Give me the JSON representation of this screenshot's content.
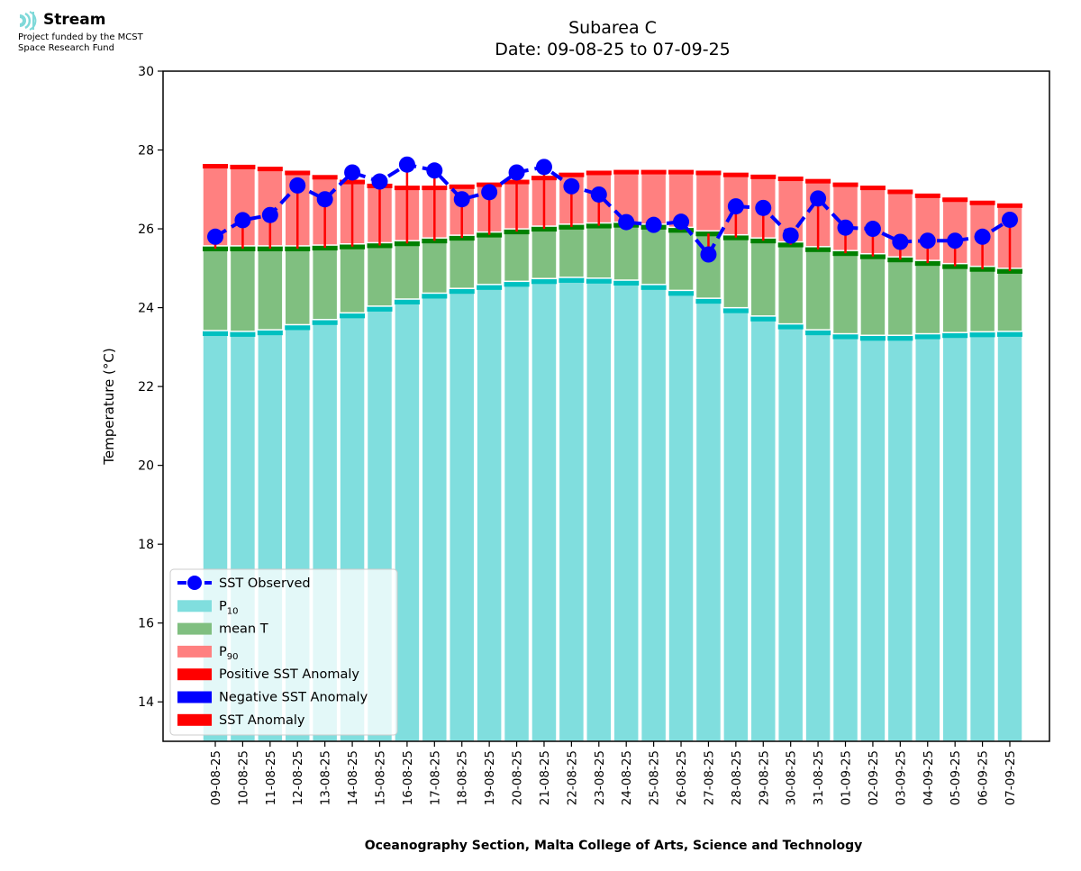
{
  "logo": {
    "name": "Stream",
    "subtitle_line1": "Project funded by the MCST",
    "subtitle_line2": "Space Research Fund"
  },
  "chart_data": {
    "type": "bar",
    "title": "Subarea C",
    "subtitle": "Date: 09-08-25 to 07-09-25",
    "xlabel": "Oceanography Section, Malta College of Arts, Science and Technology",
    "ylabel": "Temperature (°C)",
    "ylim": [
      13,
      30
    ],
    "yticks": [
      14,
      16,
      18,
      20,
      22,
      24,
      26,
      28,
      30
    ],
    "legend_position": "bottom-left",
    "categories": [
      "09-08-25",
      "10-08-25",
      "11-08-25",
      "12-08-25",
      "13-08-25",
      "14-08-25",
      "15-08-25",
      "16-08-25",
      "17-08-25",
      "18-08-25",
      "19-08-25",
      "20-08-25",
      "21-08-25",
      "22-08-25",
      "23-08-25",
      "24-08-25",
      "25-08-25",
      "26-08-25",
      "27-08-25",
      "28-08-25",
      "29-08-25",
      "30-08-25",
      "31-08-25",
      "01-09-25",
      "02-09-25",
      "03-09-25",
      "04-09-25",
      "05-09-25",
      "06-09-25",
      "07-09-25"
    ],
    "series": [
      {
        "name": "P10",
        "values": [
          23.35,
          23.33,
          23.37,
          23.5,
          23.63,
          23.8,
          23.97,
          24.15,
          24.3,
          24.42,
          24.52,
          24.6,
          24.67,
          24.7,
          24.68,
          24.63,
          24.52,
          24.37,
          24.17,
          23.93,
          23.72,
          23.52,
          23.37,
          23.27,
          23.23,
          23.23,
          23.27,
          23.3,
          23.32,
          23.33
        ]
      },
      {
        "name": "mean T",
        "values": [
          25.5,
          25.5,
          25.5,
          25.5,
          25.52,
          25.55,
          25.58,
          25.63,
          25.7,
          25.77,
          25.85,
          25.93,
          26.0,
          26.05,
          26.08,
          26.1,
          26.05,
          25.97,
          25.88,
          25.78,
          25.7,
          25.6,
          25.48,
          25.38,
          25.3,
          25.22,
          25.13,
          25.05,
          24.98,
          24.93
        ]
      },
      {
        "name": "P90",
        "values": [
          27.6,
          27.58,
          27.53,
          27.43,
          27.32,
          27.2,
          27.1,
          27.05,
          27.05,
          27.08,
          27.13,
          27.2,
          27.3,
          27.38,
          27.43,
          27.45,
          27.45,
          27.45,
          27.43,
          27.38,
          27.33,
          27.28,
          27.22,
          27.13,
          27.05,
          26.95,
          26.85,
          26.75,
          26.67,
          26.6
        ]
      },
      {
        "name": "SST Observed",
        "values": [
          25.8,
          26.22,
          26.35,
          27.1,
          26.75,
          27.43,
          27.2,
          27.63,
          27.48,
          26.75,
          26.93,
          27.43,
          27.57,
          27.08,
          26.87,
          26.17,
          26.1,
          26.18,
          25.35,
          26.57,
          26.53,
          25.83,
          26.77,
          26.03,
          26.0,
          25.67,
          25.7,
          25.7,
          25.8,
          26.23
        ]
      }
    ],
    "legend": [
      {
        "label": "SST Observed",
        "color": "#0000ff"
      },
      {
        "label": "P",
        "sub": "10",
        "color": "#80dede"
      },
      {
        "label": "mean T",
        "color": "#80bf80"
      },
      {
        "label": "P",
        "sub": "90",
        "color": "#ff8080"
      },
      {
        "label": "Positive SST Anomaly",
        "color": "#ff0000"
      },
      {
        "label": "Negative SST Anomaly",
        "color": "#0000ff"
      },
      {
        "label": "SST Anomaly",
        "color": "#ff0000"
      }
    ],
    "colors": {
      "p10_fill": "#80dede",
      "p10_edge": "#00c0c0",
      "mean_fill": "#80bf80",
      "mean_edge": "#008000",
      "p90_fill": "#ff8080",
      "p90_edge": "#ff0000",
      "observed": "#0000ff",
      "pos_anom": "#ff0000",
      "neg_anom": "#0000ff"
    }
  }
}
